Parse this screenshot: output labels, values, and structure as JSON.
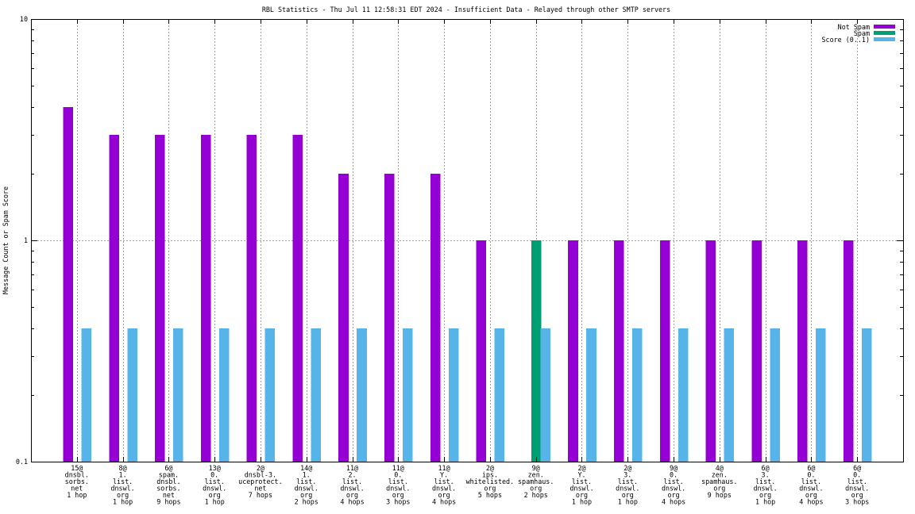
{
  "chart_data": {
    "type": "bar",
    "title": "RBL Statistics - Thu Jul 11 12:58:31 EDT 2024 - Insufficient Data - Relayed through other SMTP servers",
    "ylabel": "Message Count or Spam Score",
    "yscale": "log",
    "ylim": [
      0.1,
      10
    ],
    "yticks": [
      10,
      1,
      0.1
    ],
    "grid": true,
    "legend_position": "top-right",
    "categories": [
      [
        "15@",
        "dnsbl.",
        "sorbs.",
        "net",
        "1 hop"
      ],
      [
        "8@",
        "1.",
        "list.",
        "dnswl.",
        "org",
        "1 hop"
      ],
      [
        "6@",
        "spam.",
        "dnsbl.",
        "sorbs.",
        "net",
        "9 hops"
      ],
      [
        "13@",
        "0.",
        "list.",
        "dnswl.",
        "org",
        "1 hop"
      ],
      [
        "2@",
        "dnsbl-3.",
        "uceprotect.",
        "net",
        "7 hops"
      ],
      [
        "14@",
        "1.",
        "list.",
        "dnswl.",
        "org",
        "2 hops"
      ],
      [
        "11@",
        "2.",
        "list.",
        "dnswl.",
        "org",
        "4 hops"
      ],
      [
        "11@",
        "0.",
        "list.",
        "dnswl.",
        "org",
        "3 hops"
      ],
      [
        "11@",
        "Y.",
        "list.",
        "dnswl.",
        "org",
        "4 hops"
      ],
      [
        "2@",
        "ips.",
        "whitelisted.",
        "org",
        "5 hops"
      ],
      [
        "9@",
        "zen.",
        "spamhaus.",
        "org",
        "2 hops"
      ],
      [
        "2@",
        "Y.",
        "list.",
        "dnswl.",
        "org",
        "1 hop"
      ],
      [
        "2@",
        "3.",
        "list.",
        "dnswl.",
        "org",
        "1 hop"
      ],
      [
        "9@",
        "0.",
        "list.",
        "dnswl.",
        "org",
        "4 hops"
      ],
      [
        "4@",
        "zen.",
        "spamhaus.",
        "org",
        "9 hops"
      ],
      [
        "6@",
        "3.",
        "list.",
        "dnswl.",
        "org",
        "1 hop"
      ],
      [
        "6@",
        "0.",
        "list.",
        "dnswl.",
        "org",
        "4 hops"
      ],
      [
        "6@",
        "0.",
        "list.",
        "dnswl.",
        "org",
        "3 hops"
      ]
    ],
    "series": [
      {
        "name": "Not Spam",
        "color": "#9400d3",
        "values": [
          4,
          3,
          3,
          3,
          3,
          3,
          2,
          2,
          2,
          1,
          0,
          1,
          1,
          1,
          1,
          1,
          1,
          1
        ]
      },
      {
        "name": "Spam",
        "color": "#009e73",
        "values": [
          0,
          0,
          0,
          0,
          0,
          0,
          0,
          0,
          0,
          0,
          1,
          0,
          0,
          0,
          0,
          0,
          0,
          0
        ]
      },
      {
        "name": "Score (0..1)",
        "color": "#56b4e9",
        "values": [
          0.4,
          0.4,
          0.4,
          0.4,
          0.4,
          0.4,
          0.4,
          0.4,
          0.4,
          0.4,
          0.4,
          0.4,
          0.4,
          0.4,
          0.4,
          0.4,
          0.4,
          0.4
        ]
      }
    ]
  }
}
